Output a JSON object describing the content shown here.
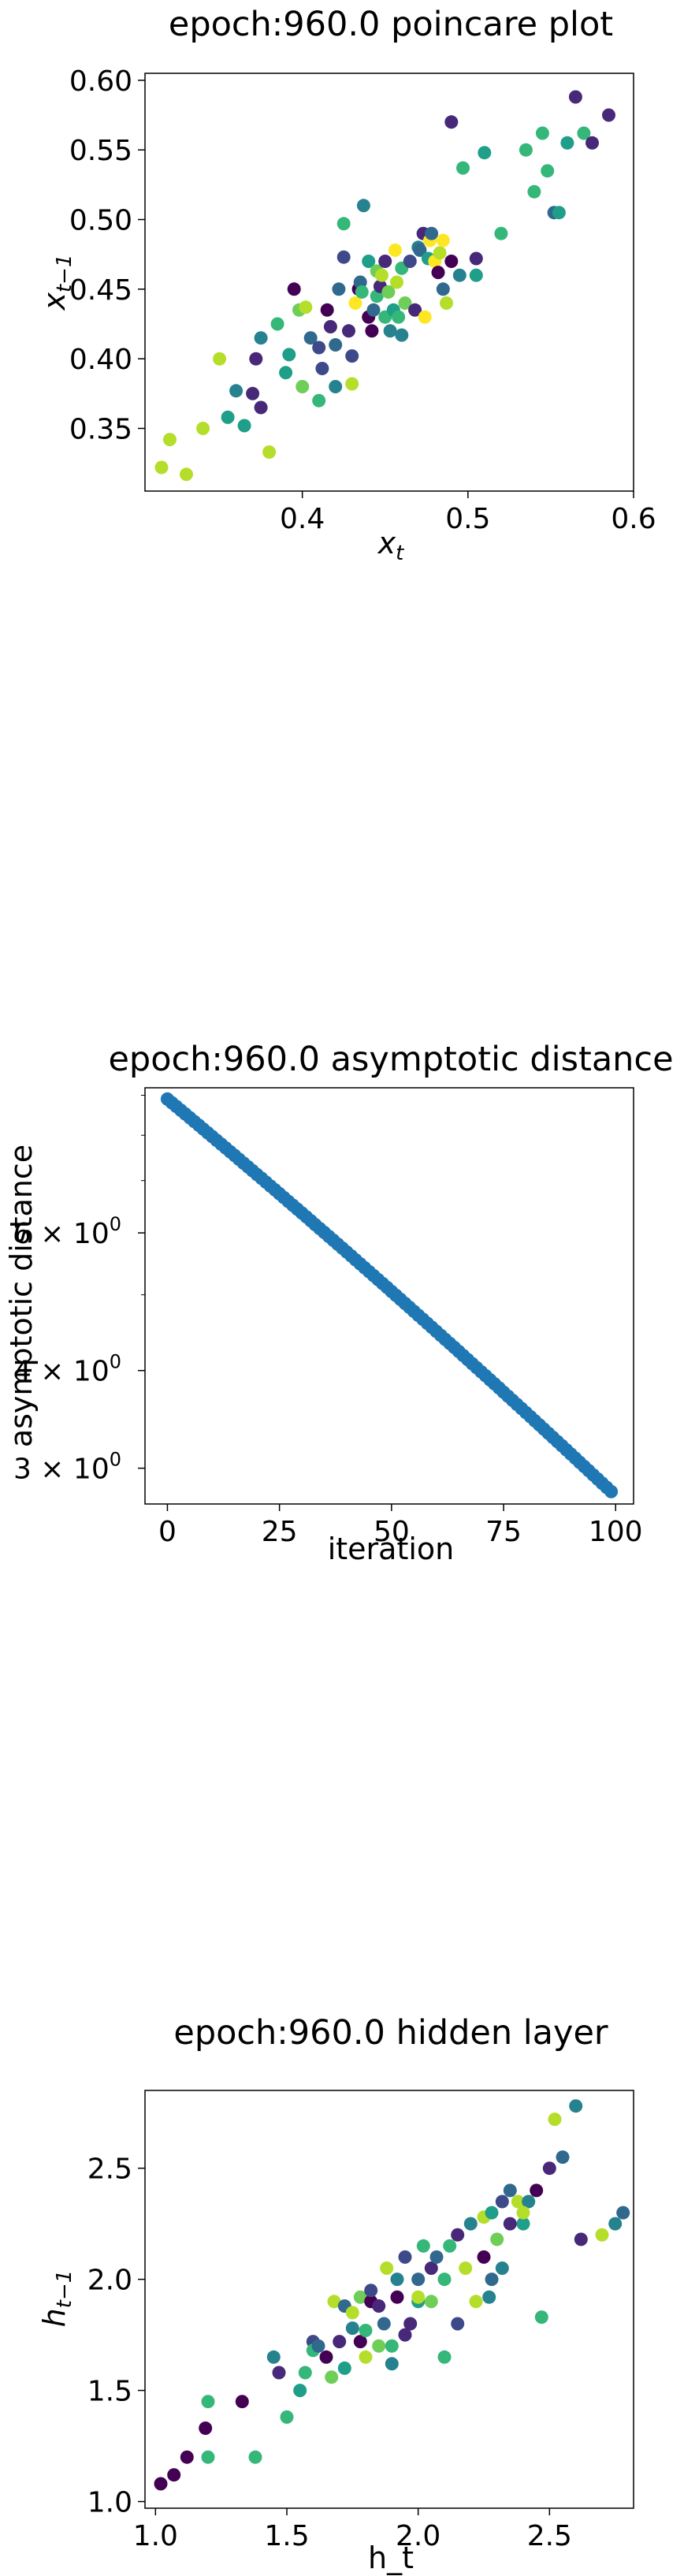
{
  "colors": {
    "viridis": [
      "#440154",
      "#482878",
      "#3e4989",
      "#31688e",
      "#26828e",
      "#1f9e89",
      "#35b779",
      "#6ece58",
      "#b5de2b",
      "#fde725"
    ],
    "blue": "#1f77b4"
  },
  "chart_data": [
    {
      "type": "scatter",
      "title": "epoch:960.0 poincare plot",
      "xlabel": "x",
      "xlabel_sub": "t",
      "ylabel": "x",
      "ylabel_sub": "t−1",
      "xlim": [
        0.305,
        0.6
      ],
      "ylim": [
        0.305,
        0.605
      ],
      "xticks": [
        0.4,
        0.5,
        0.6
      ],
      "xtick_labels": [
        "0.4",
        "0.5",
        "0.6"
      ],
      "yticks": [
        0.35,
        0.4,
        0.45,
        0.5,
        0.55,
        0.6
      ],
      "ytick_labels": [
        "0.35",
        "0.40",
        "0.45",
        "0.50",
        "0.55",
        "0.60"
      ],
      "points": [
        [
          0.315,
          0.322,
          8
        ],
        [
          0.32,
          0.342,
          8
        ],
        [
          0.33,
          0.317,
          8
        ],
        [
          0.34,
          0.35,
          8
        ],
        [
          0.35,
          0.4,
          8
        ],
        [
          0.355,
          0.358,
          5
        ],
        [
          0.36,
          0.377,
          4
        ],
        [
          0.365,
          0.352,
          5
        ],
        [
          0.37,
          0.375,
          1
        ],
        [
          0.372,
          0.4,
          1
        ],
        [
          0.375,
          0.365,
          1
        ],
        [
          0.375,
          0.415,
          4
        ],
        [
          0.38,
          0.333,
          8
        ],
        [
          0.385,
          0.425,
          6
        ],
        [
          0.39,
          0.39,
          5
        ],
        [
          0.392,
          0.403,
          5
        ],
        [
          0.395,
          0.45,
          0
        ],
        [
          0.398,
          0.435,
          7
        ],
        [
          0.4,
          0.38,
          7
        ],
        [
          0.402,
          0.437,
          8
        ],
        [
          0.405,
          0.415,
          3
        ],
        [
          0.41,
          0.37,
          6
        ],
        [
          0.41,
          0.408,
          2
        ],
        [
          0.412,
          0.393,
          2
        ],
        [
          0.415,
          0.435,
          0
        ],
        [
          0.417,
          0.423,
          1
        ],
        [
          0.42,
          0.41,
          3
        ],
        [
          0.42,
          0.38,
          4
        ],
        [
          0.422,
          0.45,
          3
        ],
        [
          0.425,
          0.473,
          2
        ],
        [
          0.425,
          0.497,
          6
        ],
        [
          0.428,
          0.42,
          1
        ],
        [
          0.43,
          0.402,
          2
        ],
        [
          0.43,
          0.382,
          8
        ],
        [
          0.432,
          0.44,
          9
        ],
        [
          0.434,
          0.45,
          0
        ],
        [
          0.435,
          0.455,
          3
        ],
        [
          0.436,
          0.448,
          6
        ],
        [
          0.437,
          0.51,
          4
        ],
        [
          0.44,
          0.43,
          0
        ],
        [
          0.44,
          0.47,
          5
        ],
        [
          0.442,
          0.42,
          0
        ],
        [
          0.443,
          0.435,
          3
        ],
        [
          0.445,
          0.445,
          6
        ],
        [
          0.445,
          0.463,
          7
        ],
        [
          0.447,
          0.452,
          1
        ],
        [
          0.448,
          0.46,
          8
        ],
        [
          0.45,
          0.43,
          6
        ],
        [
          0.45,
          0.47,
          1
        ],
        [
          0.452,
          0.448,
          7
        ],
        [
          0.453,
          0.42,
          4
        ],
        [
          0.455,
          0.435,
          5
        ],
        [
          0.456,
          0.478,
          9
        ],
        [
          0.457,
          0.455,
          8
        ],
        [
          0.458,
          0.43,
          6
        ],
        [
          0.46,
          0.417,
          4
        ],
        [
          0.46,
          0.465,
          6
        ],
        [
          0.462,
          0.44,
          7
        ],
        [
          0.465,
          0.47,
          2
        ],
        [
          0.468,
          0.435,
          1
        ],
        [
          0.47,
          0.48,
          4
        ],
        [
          0.471,
          0.478,
          3
        ],
        [
          0.473,
          0.49,
          1
        ],
        [
          0.474,
          0.43,
          9
        ],
        [
          0.476,
          0.472,
          5
        ],
        [
          0.477,
          0.485,
          9
        ],
        [
          0.478,
          0.49,
          3
        ],
        [
          0.48,
          0.47,
          9
        ],
        [
          0.482,
          0.462,
          0
        ],
        [
          0.483,
          0.476,
          8
        ],
        [
          0.485,
          0.485,
          9
        ],
        [
          0.485,
          0.45,
          3
        ],
        [
          0.487,
          0.44,
          8
        ],
        [
          0.49,
          0.47,
          0
        ],
        [
          0.49,
          0.57,
          1
        ],
        [
          0.495,
          0.46,
          4
        ],
        [
          0.497,
          0.537,
          6
        ],
        [
          0.505,
          0.472,
          1
        ],
        [
          0.505,
          0.46,
          5
        ],
        [
          0.51,
          0.548,
          5
        ],
        [
          0.52,
          0.49,
          6
        ],
        [
          0.535,
          0.55,
          6
        ],
        [
          0.54,
          0.52,
          6
        ],
        [
          0.545,
          0.562,
          6
        ],
        [
          0.548,
          0.535,
          6
        ],
        [
          0.552,
          0.505,
          3
        ],
        [
          0.555,
          0.505,
          5
        ],
        [
          0.56,
          0.555,
          5
        ],
        [
          0.565,
          0.588,
          1
        ],
        [
          0.57,
          0.562,
          6
        ],
        [
          0.575,
          0.555,
          1
        ],
        [
          0.585,
          0.575,
          1
        ]
      ]
    },
    {
      "type": "scatter",
      "title": "epoch:960.0 asymptotic distance",
      "xlabel": "iteration",
      "ylabel": "asymptotic distance",
      "yscale": "log",
      "xlim": [
        -5,
        104
      ],
      "ylim": [
        2.7,
        9.2
      ],
      "xticks": [
        0,
        25,
        50,
        75,
        100
      ],
      "xtick_labels": [
        "0",
        "25",
        "50",
        "75",
        "100"
      ],
      "yticks": [
        3,
        4,
        6
      ],
      "ytick_labels": [
        "3 × 10",
        "4 × 10",
        "6 × 10"
      ],
      "ytick_exponent": "0",
      "y_start": 8.9,
      "y_end": 2.8,
      "n_points": 100
    },
    {
      "type": "scatter",
      "title": "epoch:960.0 hidden layer",
      "xlabel": "h_t",
      "ylabel": "h",
      "ylabel_sub": "t−1",
      "xlim": [
        0.96,
        2.82
      ],
      "ylim": [
        0.97,
        2.85
      ],
      "xticks": [
        1.0,
        1.5,
        2.0,
        2.5
      ],
      "xtick_labels": [
        "1.0",
        "1.5",
        "2.0",
        "2.5"
      ],
      "yticks": [
        1.0,
        1.5,
        2.0,
        2.5
      ],
      "ytick_labels": [
        "1.0",
        "1.5",
        "2.0",
        "2.5"
      ],
      "points": [
        [
          1.02,
          1.08,
          0
        ],
        [
          1.07,
          1.12,
          0
        ],
        [
          1.12,
          1.2,
          0
        ],
        [
          1.19,
          1.33,
          0
        ],
        [
          1.2,
          1.45,
          6
        ],
        [
          1.2,
          1.2,
          6
        ],
        [
          1.33,
          1.45,
          0
        ],
        [
          1.38,
          1.2,
          6
        ],
        [
          1.45,
          1.65,
          4
        ],
        [
          1.47,
          1.58,
          1
        ],
        [
          1.5,
          1.38,
          6
        ],
        [
          1.55,
          1.5,
          5
        ],
        [
          1.57,
          1.58,
          6
        ],
        [
          1.6,
          1.72,
          2
        ],
        [
          1.6,
          1.68,
          6
        ],
        [
          1.62,
          1.7,
          3
        ],
        [
          1.65,
          1.65,
          0
        ],
        [
          1.67,
          1.56,
          7
        ],
        [
          1.68,
          1.9,
          8
        ],
        [
          1.7,
          1.72,
          1
        ],
        [
          1.72,
          1.6,
          5
        ],
        [
          1.72,
          1.88,
          3
        ],
        [
          1.75,
          1.85,
          8
        ],
        [
          1.75,
          1.78,
          4
        ],
        [
          1.78,
          1.72,
          0
        ],
        [
          1.78,
          1.92,
          7
        ],
        [
          1.8,
          1.77,
          6
        ],
        [
          1.8,
          1.65,
          8
        ],
        [
          1.82,
          1.9,
          0
        ],
        [
          1.82,
          1.95,
          2
        ],
        [
          1.85,
          1.7,
          7
        ],
        [
          1.85,
          1.88,
          1
        ],
        [
          1.87,
          1.8,
          3
        ],
        [
          1.88,
          2.05,
          8
        ],
        [
          1.9,
          1.62,
          4
        ],
        [
          1.9,
          1.7,
          6
        ],
        [
          1.92,
          2.0,
          4
        ],
        [
          1.92,
          1.92,
          0
        ],
        [
          1.95,
          1.75,
          1
        ],
        [
          1.95,
          2.1,
          2
        ],
        [
          1.97,
          1.8,
          1
        ],
        [
          2.0,
          1.9,
          5
        ],
        [
          2.0,
          2.0,
          3
        ],
        [
          2.0,
          1.92,
          8
        ],
        [
          2.02,
          2.15,
          6
        ],
        [
          2.05,
          2.05,
          1
        ],
        [
          2.05,
          1.9,
          7
        ],
        [
          2.07,
          2.1,
          3
        ],
        [
          2.1,
          2.0,
          6
        ],
        [
          2.1,
          1.65,
          6
        ],
        [
          2.12,
          2.15,
          6
        ],
        [
          2.15,
          1.8,
          2
        ],
        [
          2.15,
          2.2,
          1
        ],
        [
          2.18,
          2.05,
          8
        ],
        [
          2.2,
          2.25,
          4
        ],
        [
          2.22,
          1.9,
          8
        ],
        [
          2.25,
          2.1,
          0
        ],
        [
          2.25,
          2.28,
          8
        ],
        [
          2.27,
          1.92,
          4
        ],
        [
          2.28,
          2.3,
          5
        ],
        [
          2.3,
          2.18,
          7
        ],
        [
          2.32,
          2.35,
          2
        ],
        [
          2.32,
          2.05,
          4
        ],
        [
          2.35,
          2.4,
          3
        ],
        [
          2.38,
          2.35,
          8
        ],
        [
          2.4,
          2.25,
          5
        ],
        [
          2.42,
          2.35,
          4
        ],
        [
          2.45,
          2.4,
          0
        ],
        [
          2.47,
          1.83,
          6
        ],
        [
          2.5,
          2.5,
          1
        ],
        [
          2.52,
          2.72,
          8
        ],
        [
          2.55,
          2.55,
          3
        ],
        [
          2.6,
          2.78,
          4
        ],
        [
          2.62,
          2.18,
          1
        ],
        [
          2.7,
          2.2,
          8
        ],
        [
          2.75,
          2.25,
          4
        ],
        [
          2.78,
          2.3,
          3
        ],
        [
          2.4,
          2.3,
          8
        ],
        [
          2.35,
          2.25,
          1
        ],
        [
          2.28,
          2.0,
          3
        ]
      ]
    }
  ]
}
